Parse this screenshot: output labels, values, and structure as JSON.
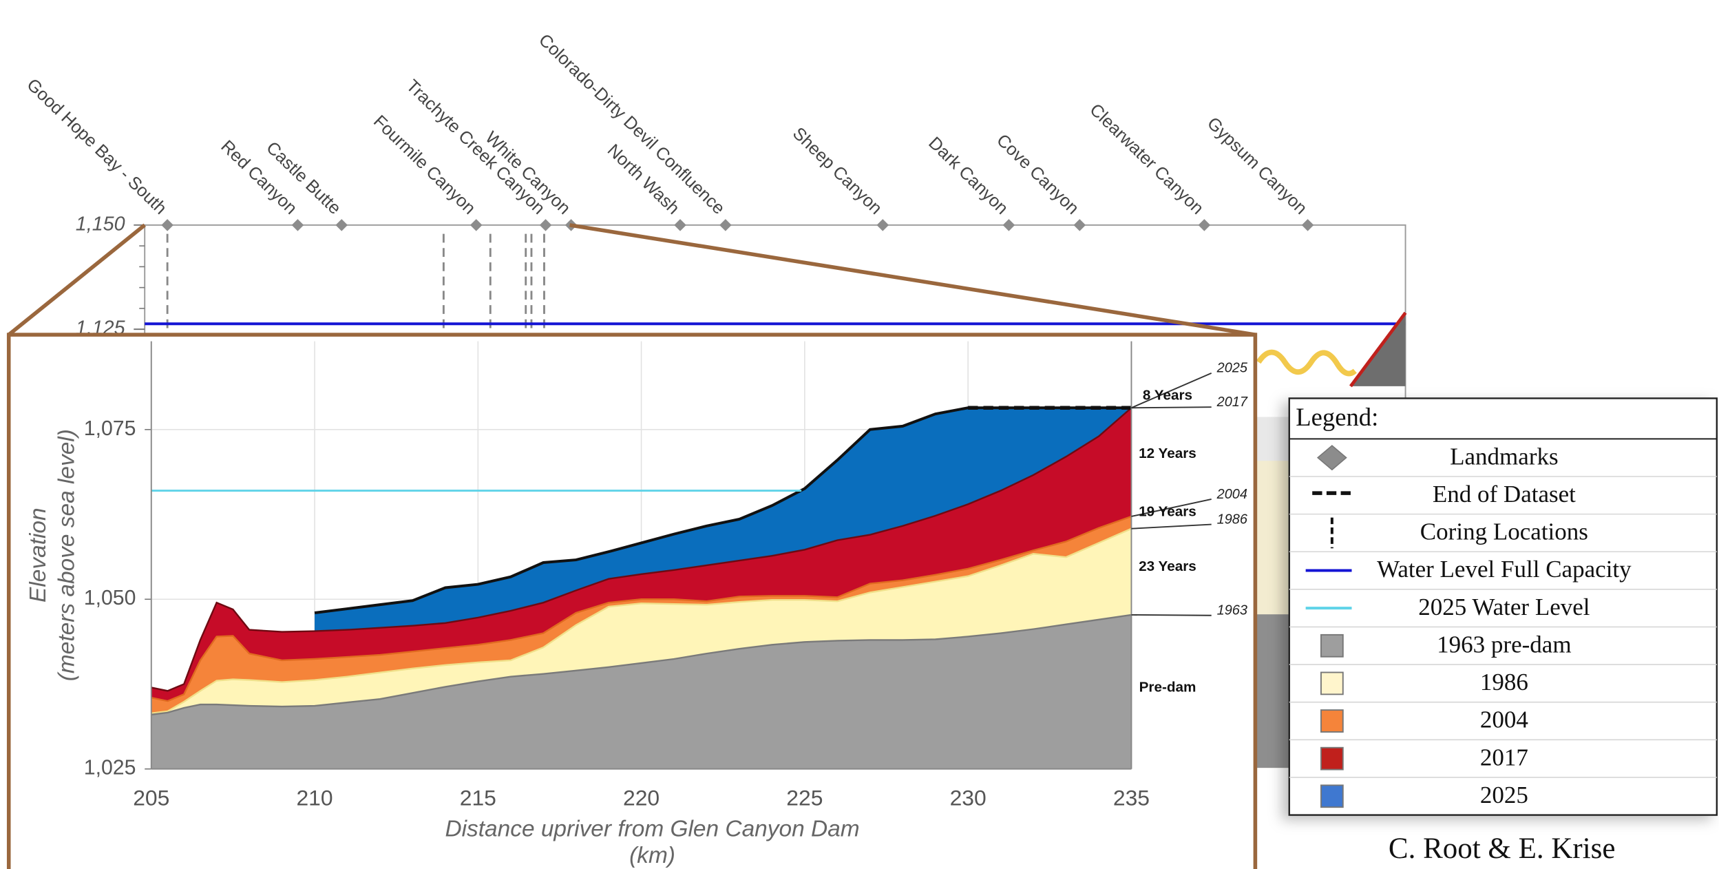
{
  "chart_data": [
    {
      "type": "line",
      "xlim": [
        205,
        294
      ],
      "ylim": [
        1100,
        1150
      ],
      "yticks": [
        {
          "value": 1150,
          "label": "1,150"
        },
        {
          "value": 1125,
          "label": "1,125"
        }
      ],
      "yminor": [
        1145,
        1140,
        1135,
        1130
      ],
      "series": [
        {
          "name": "Water Level Full Capacity",
          "color": "#1414d4",
          "x": [
            205,
            294
          ],
          "values": [
            1126.3,
            1126.3
          ]
        }
      ],
      "landmarks": {
        "y": 1150,
        "color": "#8c8c8c",
        "names": [
          "Good Hope Bay - South",
          "Red Canyon",
          "Castle Butte",
          "Fourmile Canyon",
          "Trachyte Creek Canyon",
          "White Canyon",
          "North Wash",
          "Colorado-Dirty Devil Confluence",
          "Sheep Canyon",
          "Dark Canyon",
          "Cove Canyon",
          "Clearwater Canyon",
          "Gypsum Canyon"
        ],
        "x": [
          206.6,
          215.8,
          218.9,
          228.4,
          233.3,
          235.1,
          242.8,
          246,
          257.1,
          266,
          271,
          279.8,
          287.1
        ]
      },
      "coring_x": [
        206.6,
        226.1,
        229.4,
        231.9,
        232.3,
        233.2
      ]
    },
    {
      "type": "area",
      "xlabel": [
        "Distance upriver from Glen Canyon Dam",
        "(km)"
      ],
      "ylabel": [
        "Elevation",
        "(meters above sea level)"
      ],
      "xlim": [
        205,
        235
      ],
      "ylim": [
        1025,
        1088
      ],
      "xticks": [
        205,
        210,
        215,
        220,
        225,
        230,
        235
      ],
      "yticks": [
        {
          "value": 1025,
          "label": "1,025"
        },
        {
          "value": 1050,
          "label": "1,050"
        },
        {
          "value": 1075,
          "label": "1,075"
        }
      ],
      "grid": true,
      "x": [
        205,
        205.5,
        206,
        206.5,
        207,
        207.5,
        208,
        209,
        210,
        211,
        212,
        213,
        214,
        215,
        216,
        217,
        218,
        219,
        220,
        221,
        222,
        223,
        224,
        225,
        226,
        227,
        228,
        229,
        230,
        231,
        232,
        233,
        234,
        235
      ],
      "series": [
        {
          "name": "1963",
          "color": "#9e9e9e",
          "line_color": "#7a7a7a",
          "values": [
            1033,
            1033.3,
            1034,
            1034.5,
            1034.5,
            1034.4,
            1034.3,
            1034.2,
            1034.3,
            1034.8,
            1035.3,
            1036.2,
            1037.1,
            1037.9,
            1038.6,
            1039,
            1039.5,
            1040,
            1040.6,
            1041.2,
            1042,
            1042.7,
            1043.3,
            1043.7,
            1043.9,
            1044,
            1044,
            1044.1,
            1044.5,
            1045,
            1045.6,
            1046.3,
            1047,
            1047.7
          ]
        },
        {
          "name": "1986",
          "color": "#fff5b8",
          "line_color": "#f0e08a",
          "values": [
            1033.2,
            1033.5,
            1034.9,
            1036.5,
            1038,
            1038.2,
            1038.1,
            1037.8,
            1038.1,
            1038.6,
            1039.2,
            1039.8,
            1040.3,
            1040.7,
            1041,
            1042.9,
            1046.2,
            1048.9,
            1049.4,
            1049.3,
            1049.2,
            1049.6,
            1049.9,
            1049.9,
            1049.7,
            1051,
            1051.8,
            1052.6,
            1053.4,
            1055,
            1056.7,
            1056.2,
            1058.3,
            1060.4
          ]
        },
        {
          "name": "2004",
          "color": "#f5843a",
          "line_color": "#e06a20",
          "values": [
            1035.5,
            1035,
            1036,
            1041,
            1044.5,
            1044.6,
            1042,
            1041,
            1041.2,
            1041.5,
            1041.8,
            1042.3,
            1042.8,
            1043.3,
            1044,
            1045,
            1048,
            1049.5,
            1050,
            1050,
            1049.7,
            1050.4,
            1050.5,
            1050.5,
            1050.3,
            1052.3,
            1052.8,
            1053.6,
            1054.5,
            1055.8,
            1057.2,
            1058.5,
            1060.5,
            1062.2
          ]
        },
        {
          "name": "2017",
          "color": "#c60c28",
          "line_color": "#6e0a12",
          "values": [
            1037,
            1036.5,
            1037.5,
            1044,
            1049.5,
            1048.5,
            1045.5,
            1045.2,
            1045.3,
            1045.5,
            1045.8,
            1046.1,
            1046.5,
            1047.3,
            1048.3,
            1049.5,
            1051.3,
            1053,
            1053.7,
            1054.3,
            1055,
            1055.7,
            1056.4,
            1057.3,
            1058.7,
            1059.5,
            1060.8,
            1062.3,
            1064,
            1066,
            1068.3,
            1071,
            1074,
            1078.2
          ]
        },
        {
          "name": "2025",
          "color": "#0a6ebd",
          "line_color": "#111111",
          "values": [
            null,
            null,
            null,
            null,
            null,
            null,
            null,
            null,
            1048,
            1048.6,
            1049.2,
            1049.8,
            1051.7,
            1052.2,
            1053.3,
            1055.4,
            1055.8,
            1057,
            1058.3,
            1059.6,
            1060.8,
            1061.8,
            1063.8,
            1066.3,
            1070.5,
            1075,
            1075.5,
            1077.3,
            1078.2,
            1078.2,
            1078.2,
            1078.2,
            1078.2,
            1078.2
          ]
        }
      ],
      "end_of_dataset": {
        "x": [
          230,
          235
        ],
        "values": [
          1078.2,
          1078.2
        ],
        "color": "#111111"
      },
      "water_level_2025": {
        "x": [
          205,
          224.9
        ],
        "values": [
          1066,
          1066
        ],
        "color": "#5fd3e8"
      },
      "intervals": [
        "Pre-dam",
        "23 Years",
        "19 Years",
        "12 Years",
        "8 Years"
      ]
    }
  ],
  "legend": {
    "title": "Legend:",
    "items": [
      {
        "label": "Landmarks",
        "symbol": "diamond",
        "color": "#8c8c8c"
      },
      {
        "label": "End of Dataset",
        "symbol": "dash",
        "color": "#111111"
      },
      {
        "label": "Coring Locations",
        "symbol": "vdash",
        "color": "#111111"
      },
      {
        "label": "Water Level Full Capacity",
        "symbol": "line",
        "color": "#1414d4"
      },
      {
        "label": "2025 Water Level",
        "symbol": "line",
        "color": "#5fd3e8"
      },
      {
        "label": "1963 pre-dam",
        "symbol": "square",
        "color": "#9e9e9e"
      },
      {
        "label": "1986",
        "symbol": "square",
        "color": "#fff5cc"
      },
      {
        "label": "2004",
        "symbol": "square",
        "color": "#f5843a"
      },
      {
        "label": "2017",
        "symbol": "square",
        "color": "#c0201c"
      },
      {
        "label": "2025",
        "symbol": "square",
        "color": "#3f78d0"
      }
    ]
  },
  "credit": "C. Root & E. Krise"
}
